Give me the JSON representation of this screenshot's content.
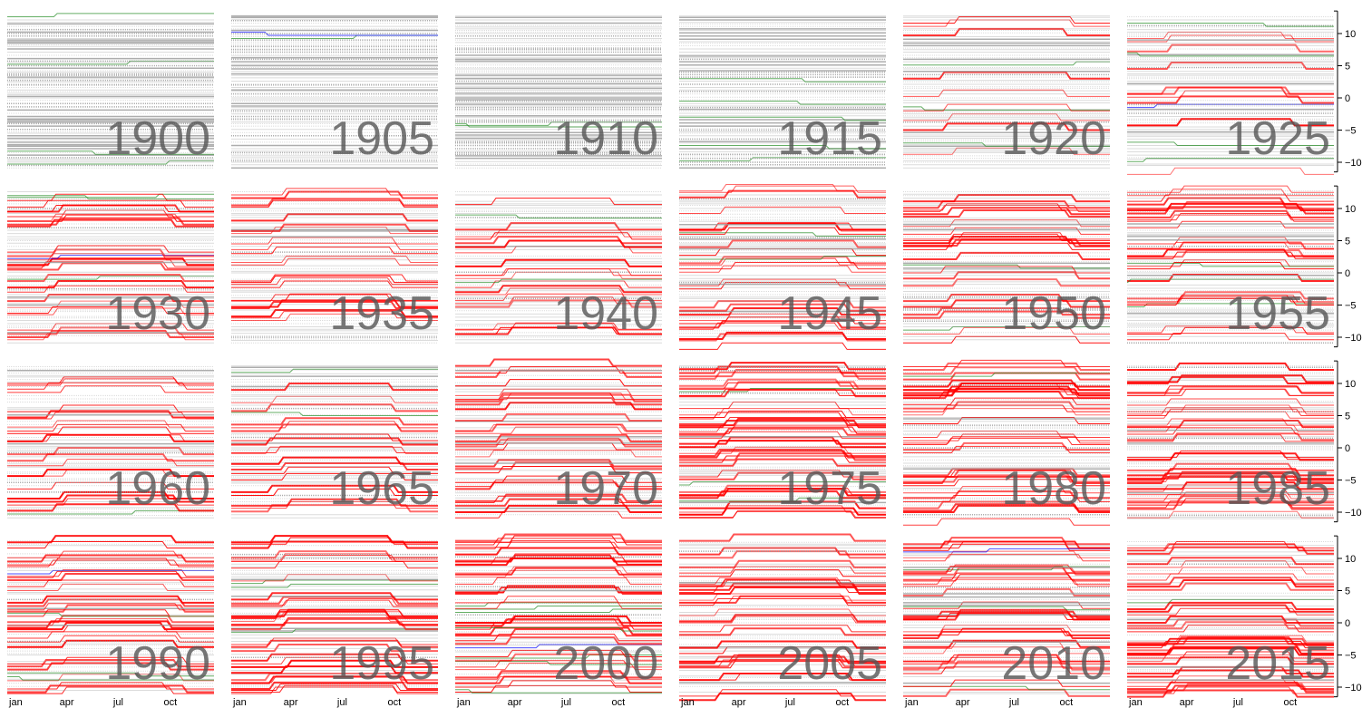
{
  "chart_data": {
    "type": "line",
    "layout": "small-multiples",
    "panels": [
      "1900",
      "1905",
      "1910",
      "1915",
      "1920",
      "1925",
      "1930",
      "1935",
      "1940",
      "1945",
      "1950",
      "1955",
      "1960",
      "1965",
      "1970",
      "1975",
      "1980",
      "1985",
      "1990",
      "1995",
      "2000",
      "2005",
      "2010",
      "2015"
    ],
    "x_ticks": [
      "jan",
      "apr",
      "jul",
      "oct"
    ],
    "y_ticks": [
      10,
      5,
      0,
      -5,
      -10
    ],
    "y_tick_labels": [
      "10",
      "5",
      "0",
      "−5",
      "−10"
    ],
    "ylim": [
      -11.5,
      12.5
    ],
    "xlabel": "",
    "ylabel": "",
    "colors": {
      "constant": "#999999",
      "dst": "#ff0000",
      "change": "#228b22",
      "other": "#0000ff",
      "year_label": "#555555"
    }
  }
}
